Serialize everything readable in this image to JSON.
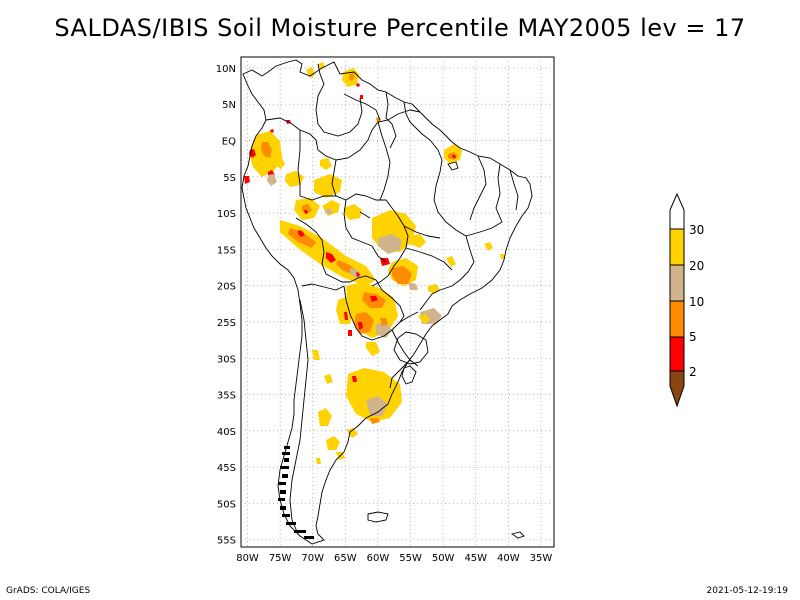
{
  "title": "SALDAS/IBIS Soil Moisture Percentile MAY2005 lev = 17",
  "axes": {
    "lon_labels": [
      "80W",
      "75W",
      "70W",
      "65W",
      "60W",
      "55W",
      "50W",
      "45W",
      "40W",
      "35W"
    ],
    "lon_values": [
      -80,
      -75,
      -70,
      -65,
      -60,
      -55,
      -50,
      -45,
      -40,
      -35
    ],
    "lat_labels": [
      "10N",
      "5N",
      "EQ",
      "5S",
      "10S",
      "15S",
      "20S",
      "25S",
      "30S",
      "35S",
      "40S",
      "45S",
      "50S",
      "55S"
    ],
    "lat_values": [
      10,
      5,
      0,
      -5,
      -10,
      -15,
      -20,
      -25,
      -30,
      -35,
      -40,
      -45,
      -50,
      -55
    ],
    "lon_range": [
      -81,
      -33
    ],
    "lat_range": [
      11.5,
      -56
    ]
  },
  "legend": {
    "labels": [
      "30",
      "20",
      "10",
      "5",
      "2"
    ],
    "colors": {
      "above_30": "#ffffff",
      "20_30": "#ffd200",
      "10_20": "#d2b48c",
      "5_10": "#ff8c00",
      "2_5": "#ff0000",
      "below_2": "#8b4513"
    }
  },
  "footer": {
    "left": "GrADS: COLA/IGES",
    "right": "2021-05-12-19:19"
  }
}
